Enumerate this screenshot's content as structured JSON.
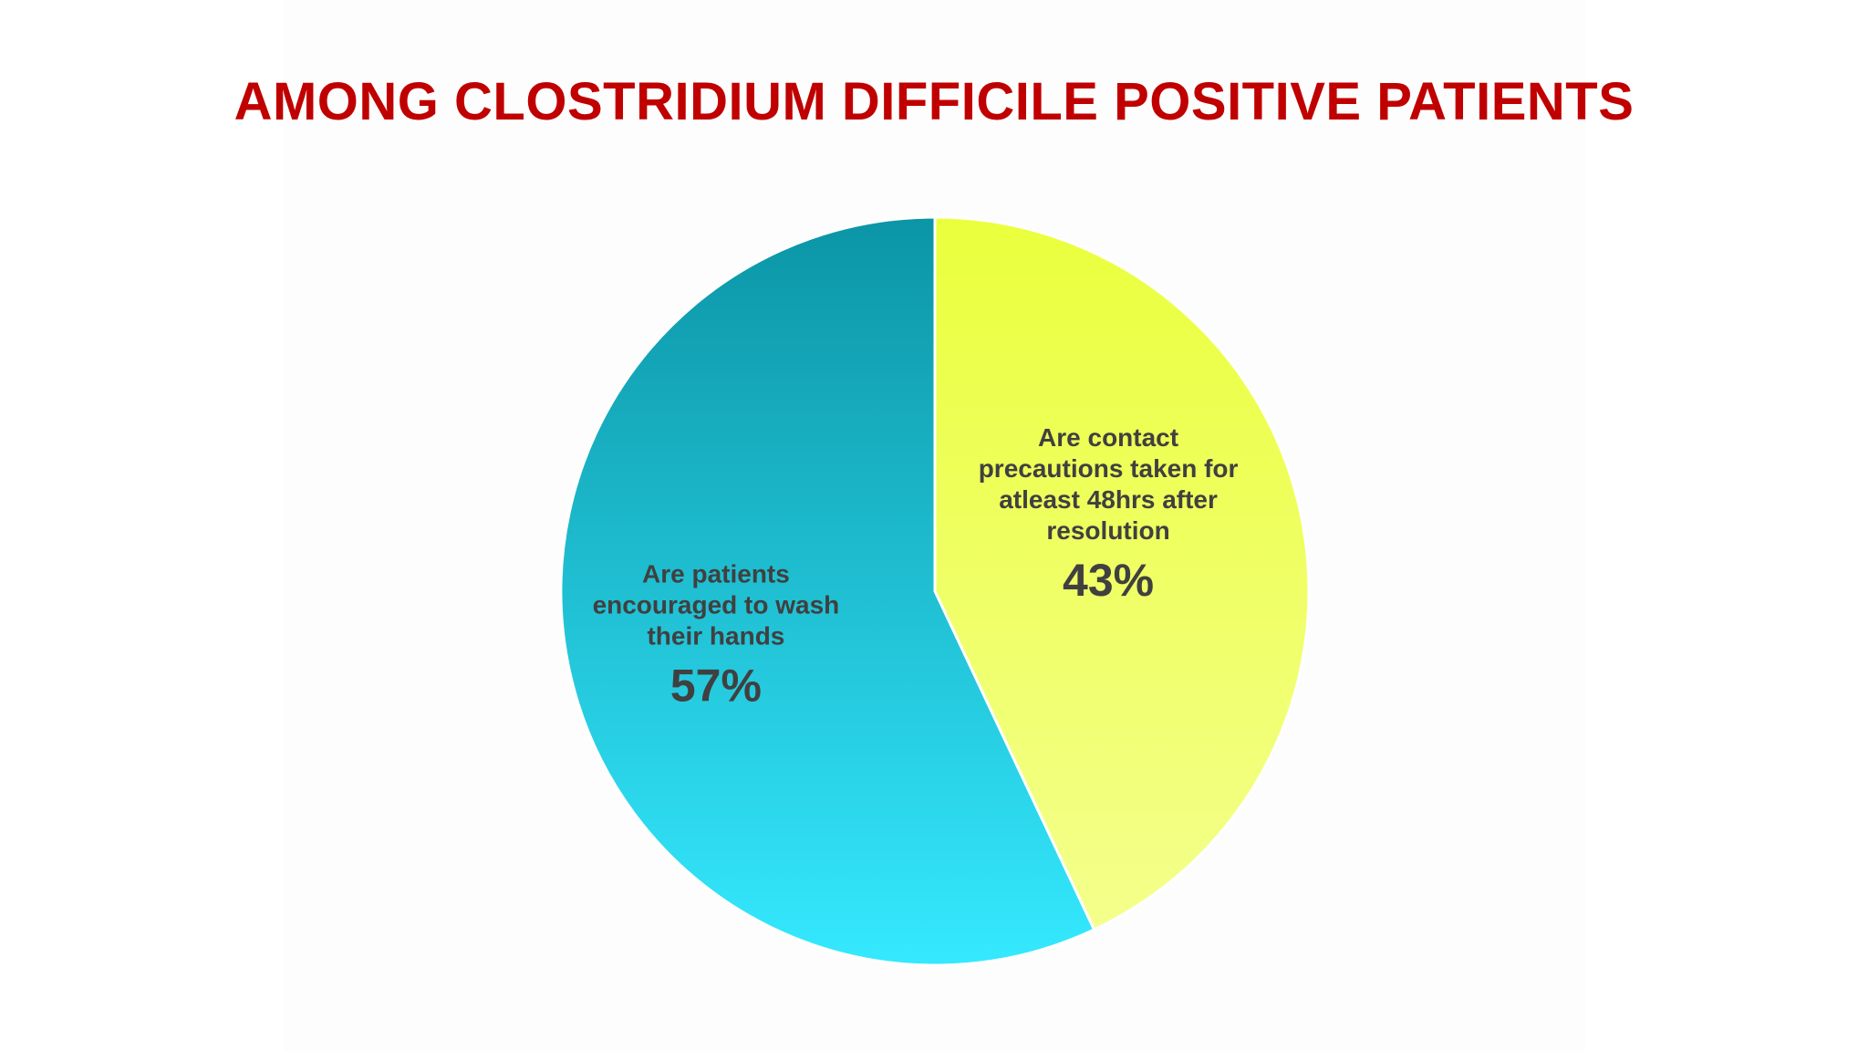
{
  "chart_data": {
    "type": "pie",
    "title": "AMONG CLOSTRIDIUM DIFFICILE POSITIVE PATIENTS",
    "slices": [
      {
        "label": "Are contact precautions taken for atleast 48hrs after resolution",
        "label_lines": [
          "Are contact",
          "precautions taken for",
          "atleast 48hrs after",
          "resolution"
        ],
        "value": 43,
        "value_label": "43%",
        "color_top": "#eaff3c",
        "color_bottom": "#f4ff8c"
      },
      {
        "label": "Are patients encouraged to wash their hands",
        "label_lines": [
          "Are patients",
          "encouraged to wash",
          "their hands"
        ],
        "value": 57,
        "value_label": "57%",
        "color_top": "#0b95a6",
        "color_bottom": "#35e9ff"
      }
    ],
    "start_angle_deg": 0,
    "direction": "clockwise",
    "legend": "none"
  },
  "colors": {
    "title": "#c00000",
    "label_text": "#404040",
    "slice_border": "#ffffff"
  }
}
